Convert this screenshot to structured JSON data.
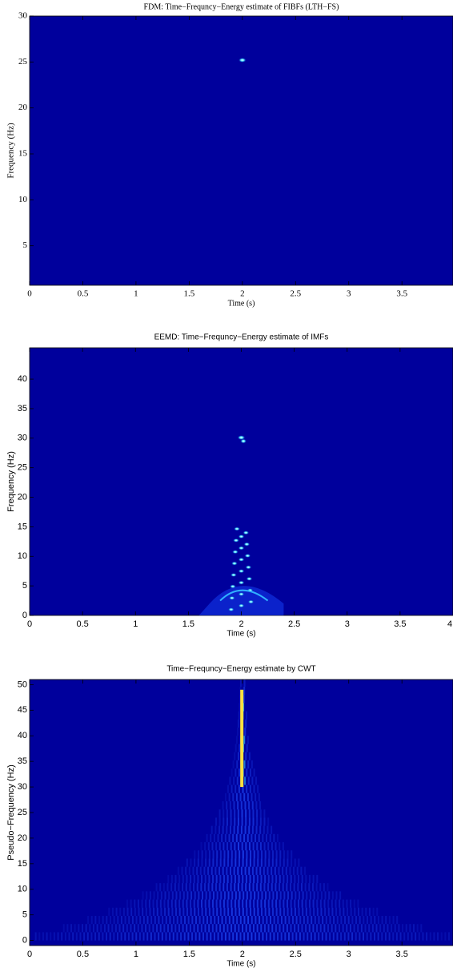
{
  "chart_data": [
    {
      "type": "heatmap",
      "title": "FDM: Time−Frequncy−Energy estimate of FIBFs (LTH−FS)",
      "xlabel": "Time (s)",
      "ylabel": "Frequency (Hz)",
      "xlim": [
        0,
        3.98
      ],
      "ylim": [
        0.7,
        30
      ],
      "xticks": [
        0,
        0.5,
        1,
        1.5,
        2,
        2.5,
        3,
        3.5
      ],
      "yticks": [
        5,
        10,
        15,
        20,
        25,
        30
      ]
    },
    {
      "type": "heatmap",
      "title": "EEMD: Time−Frequncy−Energy estimate of IMFs",
      "xlabel": "Time (s)",
      "ylabel": "Frequency (Hz)",
      "xlim": [
        0,
        4
      ],
      "ylim": [
        0,
        45.3
      ],
      "xticks": [
        0,
        0.5,
        1,
        1.5,
        2,
        2.5,
        3,
        3.5,
        4
      ],
      "yticks": [
        0,
        5,
        10,
        15,
        20,
        25,
        30,
        35,
        40
      ]
    },
    {
      "type": "heatmap",
      "title": "Time−Frequncy−Energy estimate by CWT",
      "xlabel": "Time (s)",
      "ylabel": "Pseudo−Frequency (Hz)",
      "xlim": [
        0,
        3.98
      ],
      "ylim": [
        -1,
        51
      ],
      "xticks": [
        0,
        0.5,
        1,
        1.5,
        2,
        2.5,
        3,
        3.5
      ],
      "yticks": [
        0,
        5,
        10,
        15,
        20,
        25,
        30,
        35,
        40,
        45,
        50
      ]
    }
  ]
}
